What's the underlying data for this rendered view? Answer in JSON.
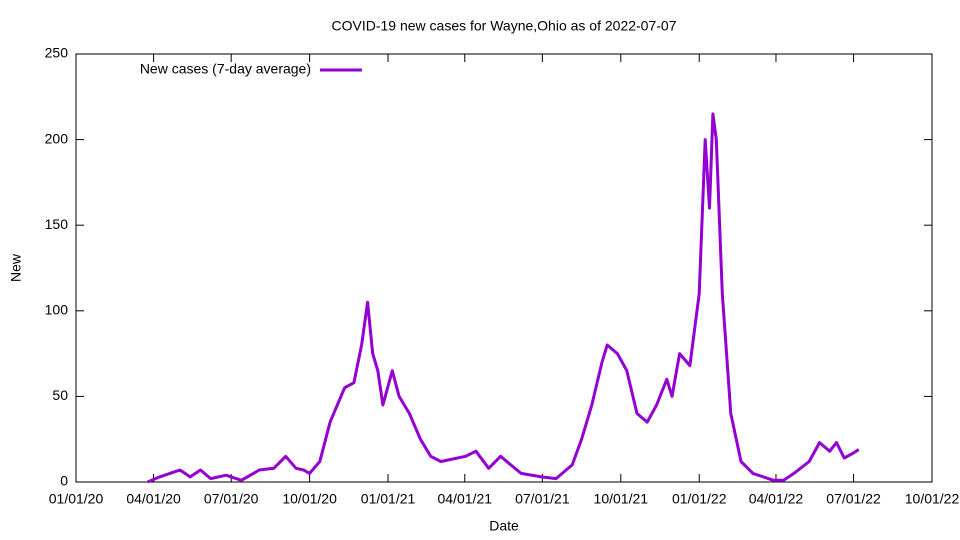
{
  "chart_data": {
    "type": "line",
    "title": "COVID-19 new cases for Wayne,Ohio as of 2022-07-07",
    "x_label": "Date",
    "y_label": "New",
    "x": [
      "03/25/20",
      "04/08/20",
      "04/20/20",
      "05/02/20",
      "05/14/20",
      "05/26/20",
      "06/07/20",
      "06/25/20",
      "07/13/20",
      "08/03/20",
      "08/20/20",
      "09/03/20",
      "09/15/20",
      "09/24/20",
      "10/01/20",
      "10/13/20",
      "10/25/20",
      "11/11/20",
      "11/22/20",
      "12/01/20",
      "12/08/20",
      "12/14/20",
      "12/20/20",
      "12/26/20",
      "01/06/21",
      "01/14/21",
      "01/26/21",
      "02/08/21",
      "02/20/21",
      "03/04/21",
      "04/02/21",
      "04/14/21",
      "04/29/21",
      "05/13/21",
      "05/25/21",
      "06/06/21",
      "06/30/21",
      "07/17/21",
      "08/05/21",
      "08/16/21",
      "08/28/21",
      "09/09/21",
      "09/15/21",
      "09/27/21",
      "10/08/21",
      "10/20/21",
      "11/01/21",
      "11/12/21",
      "11/24/21",
      "11/30/21",
      "12/09/21",
      "12/21/21",
      "01/01/22",
      "01/08/22",
      "01/13/22",
      "01/17/22",
      "01/21/22",
      "01/28/22",
      "02/07/22",
      "02/19/22",
      "03/05/22",
      "03/29/22",
      "04/10/22",
      "04/22/22",
      "05/10/22",
      "05/22/22",
      "06/03/22",
      "06/11/22",
      "06/20/22",
      "07/01/22",
      "07/07/22"
    ],
    "series": [
      {
        "name": "New cases (7-day average)",
        "color": "#9400d3",
        "values": [
          0,
          3,
          5,
          7,
          3,
          7,
          2,
          4,
          1,
          7,
          8,
          15,
          8,
          7,
          5,
          12,
          35,
          55,
          58,
          80,
          105,
          75,
          65,
          45,
          65,
          50,
          40,
          25,
          15,
          12,
          15,
          18,
          8,
          15,
          10,
          5,
          3,
          2,
          10,
          25,
          45,
          70,
          80,
          75,
          65,
          40,
          35,
          45,
          60,
          50,
          75,
          68,
          110,
          200,
          160,
          215,
          200,
          110,
          40,
          12,
          5,
          1,
          1,
          5,
          12,
          23,
          18,
          23,
          14,
          17,
          19
        ]
      }
    ],
    "xlim": [
      "01/01/20",
      "10/01/22"
    ],
    "xticks": [
      "01/01/20",
      "04/01/20",
      "07/01/20",
      "10/01/20",
      "01/01/21",
      "04/01/21",
      "07/01/21",
      "10/01/21",
      "01/01/22",
      "04/01/22",
      "07/01/22",
      "10/01/22"
    ],
    "ylim": [
      0,
      250
    ],
    "yticks": [
      0,
      50,
      100,
      150,
      200,
      250
    ],
    "legend": "top-left"
  }
}
